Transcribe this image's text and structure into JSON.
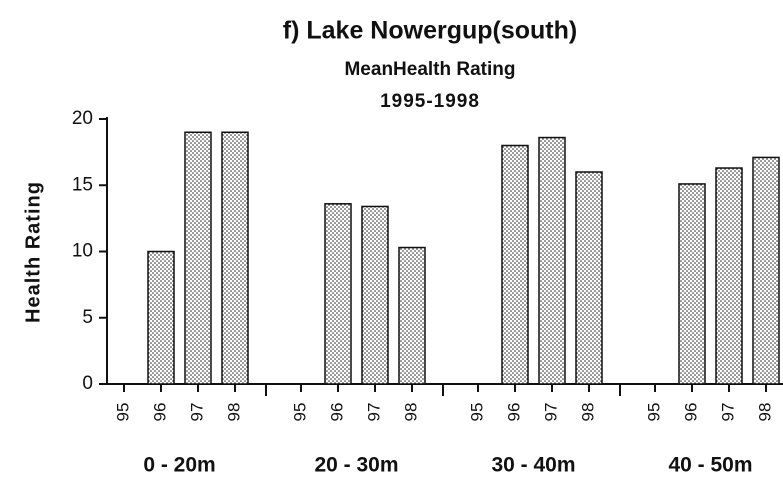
{
  "chart_data": {
    "type": "bar",
    "title": "f)  Lake Nowergup(south)",
    "subtitle": [
      "MeanHealth Rating",
      "1995-1998"
    ],
    "y_label": "Health Rating",
    "groups": [
      {
        "label": "0 - 20m",
        "categories": [
          "95",
          "96",
          "97",
          "98"
        ],
        "values": [
          null,
          10,
          19,
          19
        ]
      },
      {
        "label": "20 - 30m",
        "categories": [
          "95",
          "96",
          "97",
          "98"
        ],
        "values": [
          null,
          13.6,
          13.4,
          10.3
        ]
      },
      {
        "label": "30 - 40m",
        "categories": [
          "95",
          "96",
          "97",
          "98"
        ],
        "values": [
          null,
          18,
          18.6,
          16
        ]
      },
      {
        "label": "40 - 50m",
        "categories": [
          "95",
          "96",
          "97",
          "98"
        ],
        "values": [
          null,
          15.1,
          16.3,
          17.1
        ]
      }
    ],
    "color": "#222",
    "ylim": [
      0,
      20
    ],
    "yticks": [
      0,
      5,
      10,
      15,
      20
    ]
  }
}
